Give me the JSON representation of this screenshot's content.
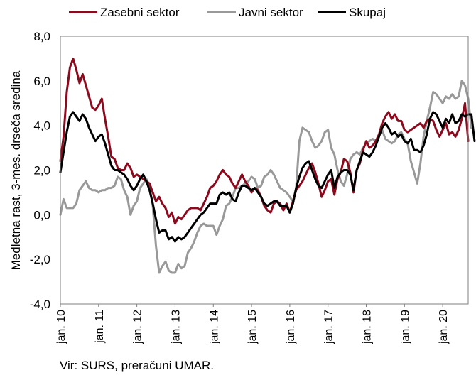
{
  "chart_data": {
    "type": "line",
    "ylabel": "Medletna rast, 3-mes. drseča sredina",
    "ylim": [
      -4,
      8
    ],
    "y_ticks": [
      "-4,0",
      "-2,0",
      "0,0",
      "2,0",
      "4,0",
      "6,0",
      "8,0"
    ],
    "x_ticks": [
      "jan. 10",
      "jan. 11",
      "jan. 12",
      "jan. 13",
      "jan. 14",
      "jan. 15",
      "jan. 16",
      "jan. 17",
      "jan. 18",
      "jan. 19",
      "jan. 20"
    ],
    "x_start": "2010-01",
    "x_end": "2020-02",
    "grid": false,
    "legend_position": "top",
    "series": [
      {
        "name": "Zasebni sektor",
        "color": "#8c0a1e",
        "values": [
          2.4,
          3.5,
          5.5,
          6.6,
          7.0,
          6.5,
          5.9,
          6.3,
          5.8,
          5.3,
          4.8,
          4.7,
          4.9,
          5.2,
          4.3,
          3.5,
          2.6,
          2.5,
          2.1,
          2.0,
          2.0,
          2.3,
          2.1,
          1.7,
          1.8,
          1.7,
          1.6,
          1.5,
          1.4,
          1.0,
          0.6,
          0.8,
          0.5,
          0.3,
          -0.1,
          0.1,
          -0.4,
          -0.1,
          -0.2,
          0.0,
          0.2,
          0.3,
          0.3,
          0.3,
          0.2,
          0.5,
          0.8,
          1.2,
          1.3,
          1.5,
          1.8,
          2.0,
          1.8,
          1.7,
          1.4,
          1.2,
          1.5,
          1.8,
          1.5,
          1.3,
          1.0,
          1.2,
          1.1,
          0.8,
          0.4,
          0.2,
          0.1,
          0.5,
          0.6,
          0.5,
          0.2,
          0.5,
          0.1,
          0.6,
          1.1,
          1.3,
          1.5,
          1.8,
          2.1,
          2.3,
          1.9,
          1.4,
          0.8,
          1.1,
          1.5,
          1.6,
          0.9,
          1.6,
          1.9,
          2.5,
          2.4,
          1.9,
          1.0,
          2.0,
          2.3,
          2.9,
          3.3,
          3.0,
          3.1,
          3.3,
          3.6,
          4.1,
          4.4,
          4.6,
          4.3,
          4.5,
          4.2,
          4.2,
          3.8,
          3.7,
          3.8,
          3.9,
          4.0,
          4.1,
          3.9,
          4.2,
          4.3,
          4.2,
          3.8,
          3.5,
          3.8,
          4.1,
          3.6,
          3.7,
          3.5,
          3.8,
          4.3,
          5.0,
          3.3
        ]
      },
      {
        "name": "Javni sektor",
        "color": "#999999",
        "values": [
          0.0,
          0.7,
          0.3,
          0.3,
          0.3,
          0.5,
          1.1,
          1.3,
          1.5,
          1.2,
          1.1,
          1.1,
          1.0,
          1.1,
          1.1,
          1.2,
          1.2,
          1.3,
          1.7,
          1.6,
          1.1,
          0.8,
          0.0,
          0.4,
          0.6,
          1.2,
          1.4,
          1.6,
          1.3,
          0.4,
          -1.4,
          -2.6,
          -2.3,
          -2.1,
          -2.5,
          -2.6,
          -2.6,
          -2.2,
          -2.4,
          -2.3,
          -1.7,
          -1.5,
          -1.2,
          -0.8,
          -0.5,
          -0.4,
          -0.5,
          -0.5,
          -0.5,
          -0.9,
          -0.5,
          -0.2,
          0.4,
          0.5,
          0.8,
          1.2,
          1.2,
          1.3,
          1.4,
          1.5,
          1.7,
          1.6,
          1.2,
          1.3,
          1.7,
          1.8,
          2.0,
          1.8,
          1.5,
          1.2,
          1.1,
          1.0,
          0.8,
          0.6,
          1.2,
          3.3,
          3.9,
          3.8,
          3.7,
          3.3,
          3.0,
          3.1,
          3.3,
          3.7,
          3.8,
          3.0,
          2.7,
          2.0,
          1.5,
          1.3,
          1.8,
          2.5,
          2.7,
          2.8,
          2.7,
          3.0,
          3.2,
          3.3,
          3.4,
          3.3,
          3.6,
          3.8,
          3.4,
          3.3,
          3.2,
          3.3,
          3.6,
          3.7,
          3.4,
          3.2,
          2.4,
          1.9,
          1.4,
          2.3,
          3.5,
          4.2,
          4.8,
          5.5,
          5.4,
          5.2,
          5.0,
          5.3,
          5.2,
          5.4,
          5.2,
          5.3,
          6.0,
          5.8,
          5.2,
          3.9
        ]
      },
      {
        "name": "Skupaj",
        "color": "#000000",
        "values": [
          1.9,
          2.8,
          3.7,
          4.4,
          4.6,
          4.4,
          4.2,
          4.5,
          4.3,
          3.9,
          3.6,
          3.3,
          3.5,
          3.6,
          3.2,
          2.7,
          2.2,
          2.0,
          2.0,
          1.9,
          1.8,
          1.6,
          1.3,
          1.1,
          1.3,
          1.6,
          1.8,
          1.5,
          1.1,
          0.5,
          -0.2,
          -0.8,
          -0.7,
          -0.7,
          -1.1,
          -1.0,
          -1.2,
          -1.0,
          -1.1,
          -1.0,
          -0.8,
          -0.6,
          -0.4,
          -0.2,
          0.0,
          0.1,
          0.3,
          0.5,
          0.5,
          0.5,
          0.9,
          1.0,
          0.9,
          1.0,
          0.7,
          0.6,
          1.0,
          1.3,
          1.3,
          1.2,
          1.1,
          1.2,
          1.0,
          0.8,
          0.5,
          0.4,
          0.5,
          0.6,
          0.6,
          0.4,
          0.4,
          0.4,
          0.1,
          0.5,
          1.2,
          1.7,
          2.1,
          2.3,
          2.4,
          2.0,
          1.6,
          1.3,
          1.2,
          1.5,
          1.8,
          2.0,
          1.2,
          1.7,
          1.9,
          2.0,
          2.0,
          1.8,
          1.1,
          2.0,
          2.4,
          2.8,
          2.7,
          2.6,
          2.8,
          3.1,
          3.5,
          3.9,
          4.1,
          3.9,
          3.6,
          3.7,
          3.5,
          3.6,
          3.3,
          3.2,
          3.4,
          2.9,
          2.9,
          2.8,
          3.1,
          3.6,
          4.3,
          4.6,
          4.5,
          4.2,
          3.9,
          4.3,
          4.1,
          4.5,
          4.1,
          4.2,
          4.5,
          4.4,
          4.5,
          4.5,
          3.3
        ]
      }
    ]
  },
  "source": "Vir: SURS, preračuni UMAR."
}
